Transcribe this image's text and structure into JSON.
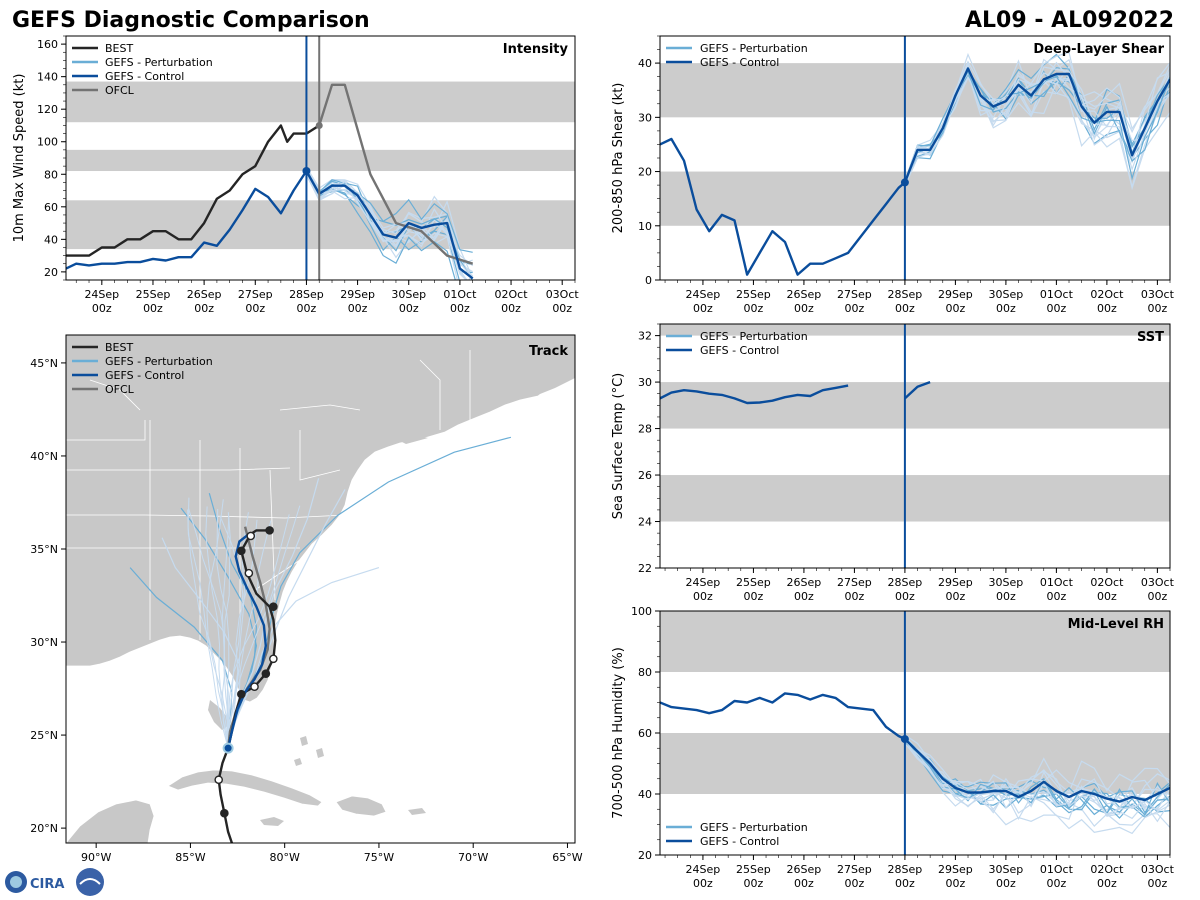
{
  "header": {
    "title": "GEFS Diagnostic Comparison",
    "storm_id": "AL09 - AL092022"
  },
  "legend_labels": {
    "best": "BEST",
    "pert": "GEFS - Perturbation",
    "ctrl": "GEFS - Control",
    "ofcl": "OFCL"
  },
  "logo_text": "CIRA",
  "colors": {
    "best": "#252525",
    "ctrl": "#0a4d9c",
    "pert": "#6aaed6",
    "pert_light": "#c6dbef",
    "ofcl": "#737373",
    "band": "#cccccc",
    "land": "#c8c8c8"
  },
  "time_ticks": [
    "24Sep",
    "25Sep",
    "26Sep",
    "27Sep",
    "28Sep",
    "29Sep",
    "30Sep",
    "01Oct",
    "02Oct",
    "03Oct"
  ],
  "time_ticks_sub": "00z",
  "chart_data": [
    {
      "id": "intensity",
      "type": "line",
      "title": "Intensity",
      "ylabel": "10m Max Wind Speed (kt)",
      "xlim": [
        -4.7,
        5.25
      ],
      "ylim": [
        15,
        165
      ],
      "yticks": [
        20,
        40,
        60,
        80,
        100,
        120,
        140,
        160
      ],
      "bands": [
        [
          34,
          64
        ],
        [
          82,
          95
        ],
        [
          112,
          137
        ]
      ],
      "analysis_time": 0,
      "ofcl_time": 0.25,
      "series": [
        {
          "name": "BEST",
          "color": "#252525",
          "x": [
            -4.7,
            -4.5,
            -4.25,
            -4.0,
            -3.75,
            -3.5,
            -3.25,
            -3.0,
            -2.75,
            -2.5,
            -2.25,
            -2.0,
            -1.75,
            -1.5,
            -1.25,
            -1.0,
            -0.75,
            -0.5,
            -0.375,
            -0.25,
            0.0,
            0.25
          ],
          "y": [
            30,
            30,
            30,
            35,
            35,
            40,
            40,
            45,
            45,
            40,
            40,
            50,
            65,
            70,
            80,
            85,
            100,
            110,
            100,
            105,
            105,
            110
          ]
        },
        {
          "name": "OFCL",
          "color": "#737373",
          "x": [
            0.25,
            0.5,
            0.75,
            1.25,
            1.75,
            2.25,
            2.75,
            3.25
          ],
          "y": [
            110,
            135,
            135,
            80,
            50,
            45,
            30,
            25
          ]
        },
        {
          "name": "GEFS - Control",
          "color": "#0a4d9c",
          "x": [
            -4.7,
            -4.5,
            -4.25,
            -4.0,
            -3.75,
            -3.5,
            -3.25,
            -3.0,
            -2.75,
            -2.5,
            -2.25,
            -2.0,
            -1.75,
            -1.5,
            -1.25,
            -1.0,
            -0.75,
            -0.5,
            -0.25,
            0.0,
            0.25,
            0.5,
            0.75,
            1.0,
            1.25,
            1.5,
            1.75,
            2.0,
            2.25,
            2.5,
            2.75,
            3.0,
            3.25
          ],
          "y": [
            22,
            25,
            24,
            25,
            25,
            26,
            26,
            28,
            27,
            29,
            29,
            38,
            36,
            46,
            58,
            71,
            66,
            56,
            70,
            82,
            68,
            73,
            73,
            67,
            55,
            43,
            41,
            50,
            47,
            49,
            50,
            22,
            16
          ]
        }
      ]
    },
    {
      "id": "shear",
      "type": "line",
      "title": "Deep-Layer Shear",
      "ylabel": "200-850 hPa Shear (kt)",
      "xlim": [
        -4.85,
        5.25
      ],
      "ylim": [
        0,
        45
      ],
      "yticks": [
        0,
        10,
        20,
        30,
        40
      ],
      "bands": [
        [
          10,
          20
        ],
        [
          30,
          40
        ]
      ],
      "analysis_time": 0,
      "series": [
        {
          "name": "GEFS - Control",
          "color": "#0a4d9c",
          "x": [
            -4.85,
            -4.625,
            -4.375,
            -4.125,
            -3.875,
            -3.625,
            -3.375,
            -3.125,
            -2.875,
            -2.625,
            -2.375,
            -2.125,
            -1.875,
            -1.625,
            -1.375,
            -1.125,
            -0.875,
            -0.625,
            -0.375,
            -0.125,
            0.0,
            0.25,
            0.5,
            0.75,
            1.0,
            1.25,
            1.5,
            1.75,
            2.0,
            2.25,
            2.5,
            2.75,
            3.0,
            3.25,
            3.5,
            3.75,
            4.0,
            4.25,
            4.5,
            4.75,
            5.0,
            5.25
          ],
          "y": [
            25,
            26,
            22,
            13,
            9,
            12,
            11,
            1,
            5,
            9,
            7,
            1,
            3,
            3,
            4,
            5,
            8,
            11,
            14,
            17,
            18,
            24,
            24,
            28,
            34,
            39,
            34,
            32,
            33,
            36,
            34,
            37,
            38,
            38,
            32,
            29,
            31,
            31,
            23,
            28,
            33,
            37
          ]
        }
      ]
    },
    {
      "id": "sst",
      "type": "line",
      "title": "SST",
      "ylabel": "Sea Surface Temp (°C)",
      "xlim": [
        -4.85,
        5.25
      ],
      "ylim": [
        22,
        32.5
      ],
      "yticks": [
        22,
        24,
        26,
        28,
        30,
        32
      ],
      "bands": [
        [
          24,
          26
        ],
        [
          28,
          30
        ],
        [
          32,
          32.5
        ]
      ],
      "analysis_time": 0,
      "series": [
        {
          "name": "GEFS - Control",
          "color": "#0a4d9c",
          "x": [
            -4.85,
            -4.625,
            -4.375,
            -4.125,
            -3.875,
            -3.625,
            -3.375,
            -3.125,
            -2.875,
            -2.625,
            -2.375,
            -2.125,
            -1.875,
            -1.625,
            -1.375,
            -1.125
          ],
          "y": [
            29.3,
            29.55,
            29.65,
            29.6,
            29.5,
            29.45,
            29.3,
            29.1,
            29.12,
            29.2,
            29.35,
            29.45,
            29.4,
            29.65,
            29.75,
            29.85
          ]
        },
        {
          "name": "GEFS - Control (forecast)",
          "color": "#0a4d9c",
          "x": [
            0.0,
            0.25,
            0.5
          ],
          "y": [
            29.3,
            29.8,
            30.0
          ]
        }
      ]
    },
    {
      "id": "rh",
      "type": "line",
      "title": "Mid-Level RH",
      "ylabel": "700-500 hPa Humidity (%)",
      "xlim": [
        -4.85,
        5.25
      ],
      "ylim": [
        20,
        100
      ],
      "yticks": [
        20,
        40,
        60,
        80,
        100
      ],
      "bands": [
        [
          40,
          60
        ],
        [
          80,
          100
        ]
      ],
      "analysis_time": 0,
      "series": [
        {
          "name": "GEFS - Control",
          "color": "#0a4d9c",
          "x": [
            -4.85,
            -4.625,
            -4.375,
            -4.125,
            -3.875,
            -3.625,
            -3.375,
            -3.125,
            -2.875,
            -2.625,
            -2.375,
            -2.125,
            -1.875,
            -1.625,
            -1.375,
            -1.125,
            -0.875,
            -0.625,
            -0.375,
            -0.125,
            0.0,
            0.25,
            0.5,
            0.75,
            1.0,
            1.25,
            1.5,
            1.75,
            2.0,
            2.25,
            2.5,
            2.75,
            3.0,
            3.25,
            3.5,
            3.75,
            4.0,
            4.25,
            4.5,
            4.75,
            5.0,
            5.25
          ],
          "y": [
            70,
            68.5,
            68,
            67.5,
            66.5,
            67.5,
            70.5,
            70,
            71.5,
            70,
            73,
            72.5,
            71,
            72.5,
            71.5,
            68.5,
            68,
            67.5,
            62,
            59,
            58,
            54,
            50,
            45,
            42,
            40.5,
            40.5,
            41,
            41,
            39,
            41,
            44,
            41,
            39,
            41,
            40,
            38.5,
            37.5,
            39,
            38,
            40,
            42
          ]
        }
      ]
    },
    {
      "id": "track",
      "type": "map",
      "title": "Track",
      "lon_range": [
        -91.6,
        -64.6
      ],
      "lat_range": [
        19.2,
        46.5
      ],
      "xticks": [
        "90°W",
        "85°W",
        "80°W",
        "75°W",
        "70°W",
        "65°W"
      ],
      "yticks": [
        "20°N",
        "25°N",
        "30°N",
        "35°N",
        "40°N",
        "45°N"
      ],
      "xtick_values": [
        -90,
        -85,
        -80,
        -75,
        -70,
        -65
      ],
      "ytick_values": [
        20,
        25,
        30,
        35,
        40,
        45
      ],
      "best_track": [
        [
          -82.8,
          19.2
        ],
        [
          -83.0,
          19.8
        ],
        [
          -83.2,
          20.8
        ],
        [
          -83.4,
          21.8
        ],
        [
          -83.5,
          22.6
        ],
        [
          -83.3,
          23.5
        ],
        [
          -83.0,
          24.3
        ],
        [
          -82.8,
          25.2
        ],
        [
          -82.6,
          26.2
        ],
        [
          -82.3,
          27.2
        ],
        [
          -81.6,
          27.6
        ],
        [
          -81.0,
          28.3
        ],
        [
          -80.6,
          29.1
        ],
        [
          -80.5,
          30.1
        ],
        [
          -80.6,
          31.2
        ],
        [
          -80.8,
          31.9
        ],
        [
          -81.5,
          32.6
        ],
        [
          -82.0,
          33.7
        ],
        [
          -82.2,
          34.5
        ],
        [
          -82.3,
          34.9
        ],
        [
          -81.8,
          35.8
        ],
        [
          -81.5,
          36.0
        ],
        [
          -80.8,
          36.0
        ]
      ],
      "best_markers": [
        [
          -83.2,
          20.8,
          "filled"
        ],
        [
          -83.5,
          22.6,
          "open"
        ],
        [
          -82.3,
          27.2,
          "filled"
        ],
        [
          -81.6,
          27.6,
          "open"
        ],
        [
          -81.0,
          28.3,
          "filled"
        ],
        [
          -80.6,
          29.1,
          "open"
        ],
        [
          -80.6,
          31.9,
          "filled"
        ],
        [
          -81.9,
          33.7,
          "open"
        ],
        [
          -82.3,
          34.9,
          "filled"
        ],
        [
          -81.8,
          35.7,
          "open"
        ],
        [
          -80.8,
          36.0,
          "filled"
        ]
      ],
      "ofcl_track": [
        [
          -83.0,
          24.3
        ],
        [
          -82.9,
          25.2
        ],
        [
          -82.6,
          26.2
        ],
        [
          -82.0,
          27.5
        ],
        [
          -81.3,
          28.5
        ],
        [
          -80.9,
          29.6
        ],
        [
          -80.8,
          30.7
        ],
        [
          -81.0,
          32.0
        ],
        [
          -81.3,
          33.2
        ],
        [
          -81.7,
          34.6
        ],
        [
          -82.1,
          36.2
        ]
      ],
      "ctrl_track": [
        [
          -83.0,
          24.3
        ],
        [
          -82.8,
          25.2
        ],
        [
          -82.5,
          26.4
        ],
        [
          -82.1,
          27.3
        ],
        [
          -81.6,
          28.0
        ],
        [
          -81.2,
          28.8
        ],
        [
          -81.0,
          29.8
        ],
        [
          -81.1,
          30.9
        ],
        [
          -81.5,
          31.9
        ],
        [
          -82.0,
          32.9
        ],
        [
          -82.4,
          33.8
        ],
        [
          -82.6,
          34.6
        ],
        [
          -82.4,
          35.4
        ],
        [
          -81.9,
          35.8
        ]
      ],
      "ctrl_start": [
        -83.0,
        24.3
      ],
      "perturbation_tracks": [
        [
          [
            -83.0,
            24.3
          ],
          [
            -82.7,
            25.6
          ],
          [
            -82.2,
            27.0
          ],
          [
            -81.5,
            28.4
          ],
          [
            -81.0,
            29.8
          ],
          [
            -80.7,
            31.3
          ],
          [
            -80.2,
            33.0
          ],
          [
            -79.2,
            34.8
          ],
          [
            -77.2,
            36.8
          ],
          [
            -74.5,
            38.6
          ],
          [
            -71.0,
            40.2
          ],
          [
            -68.0,
            41.0
          ]
        ],
        [
          [
            -83.0,
            24.3
          ],
          [
            -82.9,
            25.6
          ],
          [
            -82.6,
            27.2
          ],
          [
            -82.4,
            28.8
          ],
          [
            -83.2,
            30.5
          ],
          [
            -84.5,
            32.3
          ],
          [
            -85.8,
            34.0
          ],
          [
            -86.5,
            35.6
          ]
        ],
        [
          [
            -83.0,
            24.3
          ],
          [
            -82.8,
            25.5
          ],
          [
            -82.4,
            26.8
          ],
          [
            -81.8,
            28.2
          ],
          [
            -81.5,
            29.8
          ],
          [
            -81.9,
            31.5
          ],
          [
            -83.0,
            33.5
          ],
          [
            -84.2,
            35.5
          ],
          [
            -85.5,
            37.2
          ]
        ],
        [
          [
            -83.0,
            24.3
          ],
          [
            -82.7,
            25.5
          ],
          [
            -82.2,
            26.8
          ],
          [
            -81.6,
            28.0
          ],
          [
            -81.2,
            29.4
          ],
          [
            -80.6,
            30.8
          ],
          [
            -79.4,
            32.2
          ],
          [
            -77.5,
            33.2
          ],
          [
            -75.0,
            34.0
          ]
        ],
        [
          [
            -83.0,
            24.3
          ],
          [
            -82.9,
            25.7
          ],
          [
            -82.8,
            27.3
          ],
          [
            -83.3,
            29.0
          ],
          [
            -84.8,
            30.8
          ],
          [
            -86.8,
            32.4
          ],
          [
            -88.2,
            34.0
          ]
        ],
        [
          [
            -83.0,
            24.3
          ],
          [
            -82.6,
            25.8
          ],
          [
            -81.9,
            27.4
          ],
          [
            -81.1,
            29.0
          ],
          [
            -80.5,
            30.6
          ],
          [
            -79.8,
            32.4
          ],
          [
            -78.8,
            34.4
          ],
          [
            -77.8,
            36.4
          ],
          [
            -76.8,
            38.2
          ]
        ],
        [
          [
            -83.0,
            24.3
          ],
          [
            -82.8,
            25.4
          ],
          [
            -82.5,
            26.6
          ],
          [
            -82.0,
            27.8
          ],
          [
            -81.6,
            29.2
          ],
          [
            -81.5,
            30.8
          ],
          [
            -81.8,
            32.4
          ],
          [
            -82.8,
            34.2
          ],
          [
            -83.5,
            36.2
          ],
          [
            -84.0,
            38.0
          ]
        ],
        [
          [
            -83.0,
            24.3
          ],
          [
            -82.7,
            25.6
          ],
          [
            -82.3,
            27.0
          ],
          [
            -81.7,
            28.4
          ],
          [
            -81.3,
            29.8
          ],
          [
            -81.0,
            31.2
          ],
          [
            -80.5,
            32.8
          ],
          [
            -79.6,
            34.6
          ],
          [
            -78.8,
            36.6
          ],
          [
            -78.2,
            38.8
          ]
        ]
      ]
    }
  ]
}
